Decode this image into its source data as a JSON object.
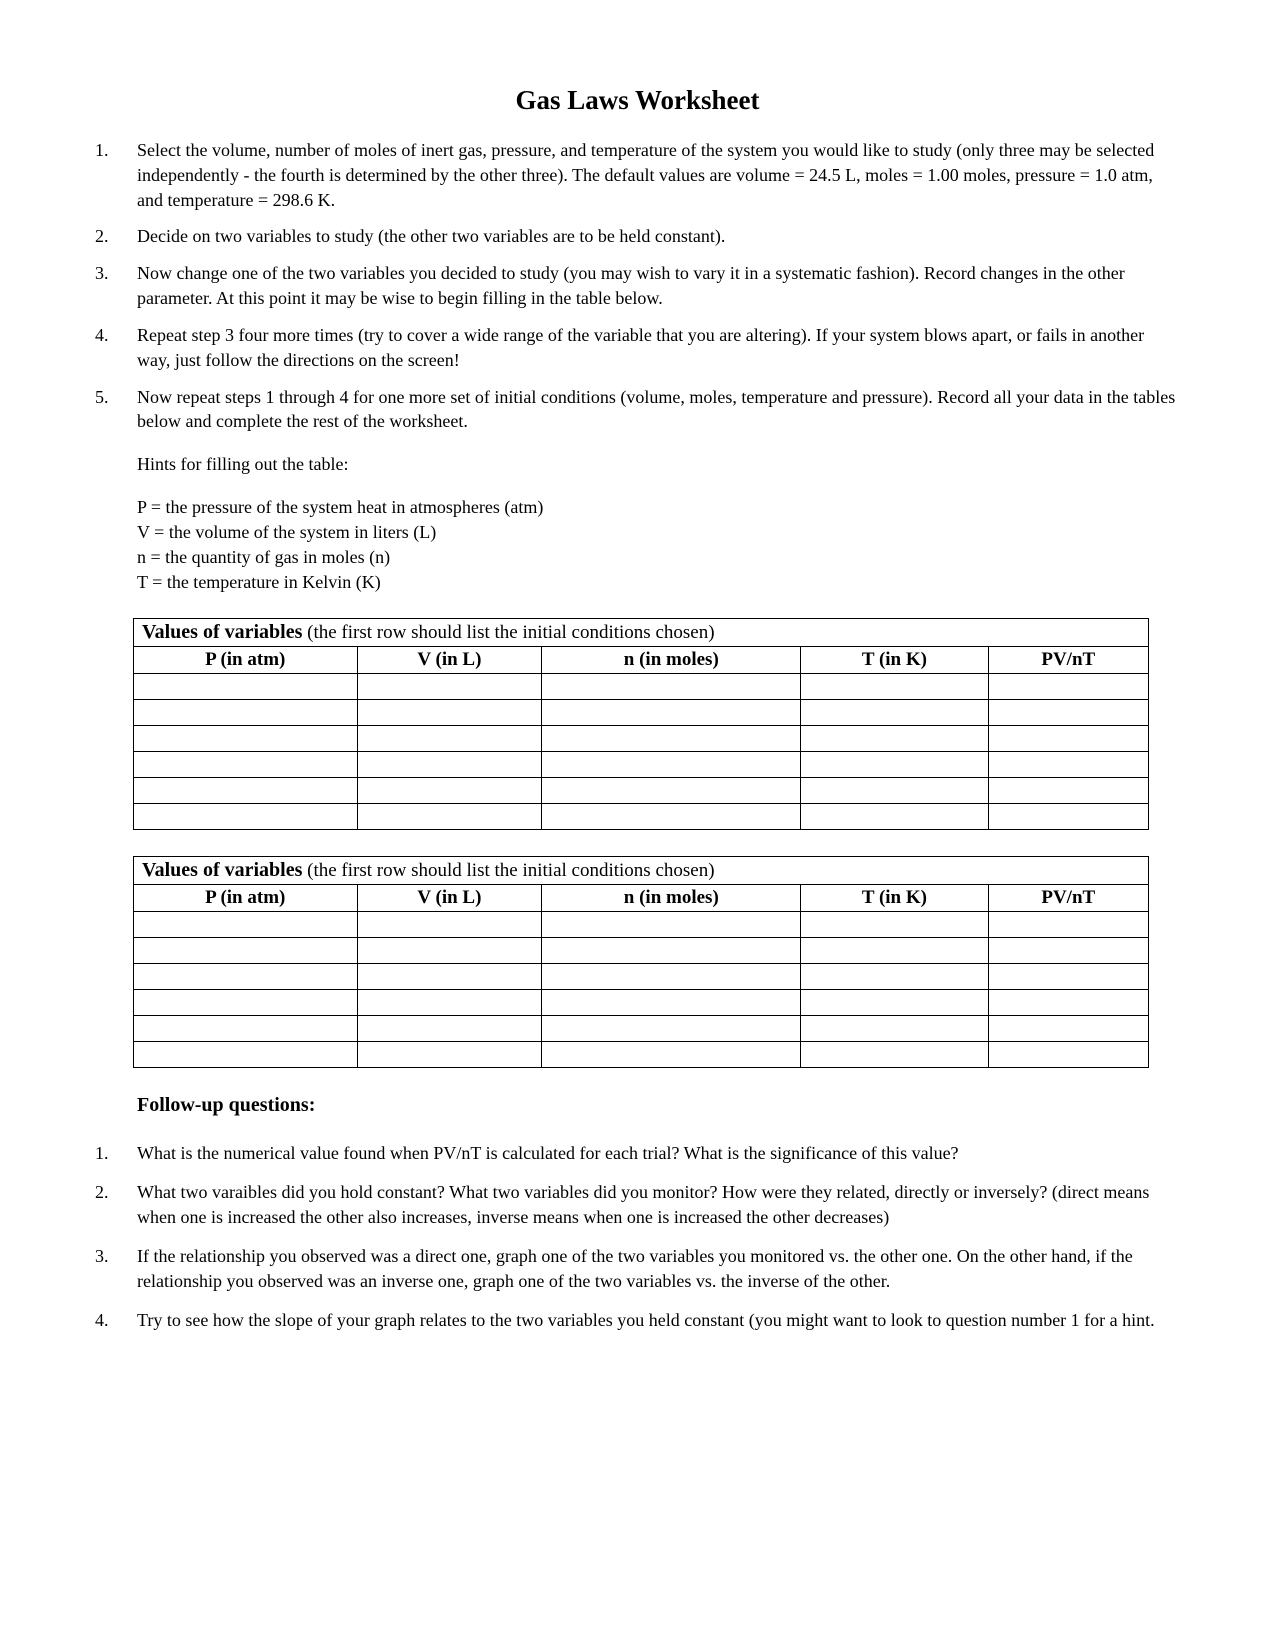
{
  "title": "Gas Laws Worksheet",
  "instructions": [
    "Select the volume, number of moles of inert gas, pressure, and temperature of the system you would like to study (only three may be selected independently - the fourth is determined by the other three).   The default values are volume = 24.5 L,  moles = 1.00 moles, pressure = 1.0 atm, and temperature = 298.6 K.",
    "Decide on two variables to study (the other two variables are to be held constant).",
    "Now change one of the two variables you decided to study (you may wish to vary it in a systematic fashion).   Record changes in the other parameter.    At this point it may be wise to begin filling in the table below.",
    "Repeat step 3 four more times (try to cover a wide range of the variable that you are altering).    If your system blows apart, or fails in another way, just follow the directions on the screen!",
    "Now repeat steps 1 through 4 for one more set of initial conditions (volume, moles, temperature and pressure).   Record all your data in the tables below and complete the rest of the worksheet."
  ],
  "hints": {
    "heading": "Hints for filling out the table:",
    "defs": [
      "P = the pressure of the system heat in atmospheres (atm)",
      "V = the volume of the system in liters (L)",
      "n = the quantity of gas in moles (n)",
      "T = the temperature in Kelvin (K)"
    ]
  },
  "table": {
    "caption_bold": "Values of variables",
    "caption_rest": " (the first row should list the initial conditions chosen)",
    "columns": [
      "P (in atm)",
      "V (in L)",
      "n (in moles)",
      "T (in K)",
      "PV/nT"
    ],
    "blank_rows": 6
  },
  "followup_heading": "Follow-up questions:",
  "followup": [
    "What is the numerical value found when PV/nT is calculated for each trial?    What is the significance of this value?",
    "What two varaibles did you hold constant?    What two variables did you monitor?    How were they related, directly or inversely?   (direct means when one is increased the other also increases, inverse means when one is increased the other decreases)",
    "If the relationship you observed was a direct one, graph one of the two variables you monitored vs. the other one.    On the other hand, if the relationship you observed was an inverse one, graph one of the two variables vs. the inverse of the other.",
    "Try to see how the slope of your graph relates to the two variables you held constant (you might want to look to question number 1 for a hint."
  ]
}
